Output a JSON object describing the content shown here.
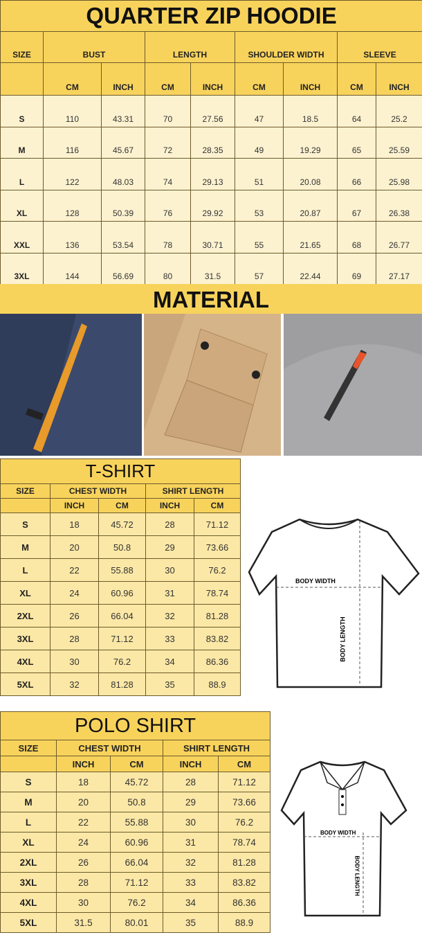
{
  "hoodie": {
    "title": "QUARTER ZIP HOODIE",
    "size_label": "SIZE",
    "groups": [
      "BUST",
      "LENGTH",
      "SHOULDER WIDTH",
      "SLEEVE"
    ],
    "units": [
      "CM",
      "INCH",
      "CM",
      "INCH",
      "CM",
      "INCH",
      "CM",
      "INCH"
    ],
    "rows": [
      [
        "S",
        "110",
        "43.31",
        "70",
        "27.56",
        "47",
        "18.5",
        "64",
        "25.2"
      ],
      [
        "M",
        "116",
        "45.67",
        "72",
        "28.35",
        "49",
        "19.29",
        "65",
        "25.59"
      ],
      [
        "L",
        "122",
        "48.03",
        "74",
        "29.13",
        "51",
        "20.08",
        "66",
        "25.98"
      ],
      [
        "XL",
        "128",
        "50.39",
        "76",
        "29.92",
        "53",
        "20.87",
        "67",
        "26.38"
      ],
      [
        "XXL",
        "136",
        "53.54",
        "78",
        "30.71",
        "55",
        "21.65",
        "68",
        "26.77"
      ],
      [
        "3XL",
        "144",
        "56.69",
        "80",
        "31.5",
        "57",
        "22.44",
        "69",
        "27.17"
      ]
    ]
  },
  "material": {
    "title": "MATERIAL",
    "photos": [
      "navy-fleece-pocket-orange-zipper",
      "khaki-flap-pocket",
      "grey-sleeve-zipper-pocket"
    ]
  },
  "tshirt": {
    "title": "T-SHIRT",
    "size_label": "SIZE",
    "groups": [
      "CHEST WIDTH",
      "SHIRT LENGTH"
    ],
    "units": [
      "INCH",
      "CM",
      "INCH",
      "CM"
    ],
    "rows": [
      [
        "S",
        "18",
        "45.72",
        "28",
        "71.12"
      ],
      [
        "M",
        "20",
        "50.8",
        "29",
        "73.66"
      ],
      [
        "L",
        "22",
        "55.88",
        "30",
        "76.2"
      ],
      [
        "XL",
        "24",
        "60.96",
        "31",
        "78.74"
      ],
      [
        "2XL",
        "26",
        "66.04",
        "32",
        "81.28"
      ],
      [
        "3XL",
        "28",
        "71.12",
        "33",
        "83.82"
      ],
      [
        "4XL",
        "30",
        "76.2",
        "34",
        "86.36"
      ],
      [
        "5XL",
        "32",
        "81.28",
        "35",
        "88.9"
      ]
    ],
    "diagram": {
      "width_label": "BODY WIDTH",
      "length_label": "BODY LENGTH"
    }
  },
  "polo": {
    "title": "POLO SHIRT",
    "size_label": "SIZE",
    "groups": [
      "CHEST WIDTH",
      "SHIRT LENGTH"
    ],
    "units": [
      "INCH",
      "CM",
      "INCH",
      "CM"
    ],
    "rows": [
      [
        "S",
        "18",
        "45.72",
        "28",
        "71.12"
      ],
      [
        "M",
        "20",
        "50.8",
        "29",
        "73.66"
      ],
      [
        "L",
        "22",
        "55.88",
        "30",
        "76.2"
      ],
      [
        "XL",
        "24",
        "60.96",
        "31",
        "78.74"
      ],
      [
        "2XL",
        "26",
        "66.04",
        "32",
        "81.28"
      ],
      [
        "3XL",
        "28",
        "71.12",
        "33",
        "83.82"
      ],
      [
        "4XL",
        "30",
        "76.2",
        "34",
        "86.36"
      ],
      [
        "5XL",
        "31.5",
        "80.01",
        "35",
        "88.9"
      ]
    ],
    "diagram": {
      "width_label": "BODY WIDTH",
      "length_label": "BODY LENGTH"
    }
  },
  "colors": {
    "header_yellow": "#f8d35c",
    "hoodie_cell": "#fdf2d0",
    "shirt_cell": "#fce8a6"
  }
}
